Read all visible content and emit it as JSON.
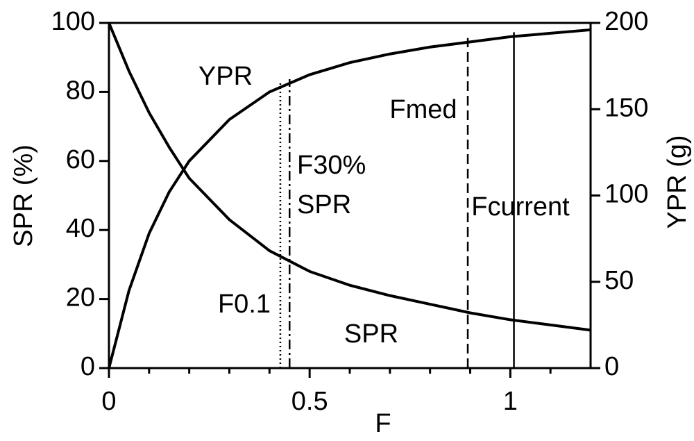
{
  "chart_data": {
    "type": "line",
    "xlabel": "F",
    "ylabel": "SPR (%)",
    "y2label": "YPR (g)",
    "xlim": [
      0,
      1.2
    ],
    "xticks": [
      0,
      0.5,
      1
    ],
    "xminorticks": [
      0.1,
      0.2,
      0.3,
      0.4,
      0.6,
      0.7,
      0.8,
      0.9,
      1.1
    ],
    "ylim": [
      0,
      100
    ],
    "yticks": [
      0,
      20,
      40,
      60,
      80,
      100
    ],
    "y2lim": [
      0,
      200
    ],
    "y2ticks": [
      0,
      50,
      100,
      150,
      200
    ],
    "x": [
      0,
      0.05,
      0.1,
      0.15,
      0.2,
      0.3,
      0.4,
      0.5,
      0.6,
      0.7,
      0.8,
      0.9,
      1.0,
      1.1,
      1.2
    ],
    "series": [
      {
        "name": "SPR",
        "color": "#000000",
        "axis": "y",
        "values": [
          100,
          86,
          74,
          64,
          55,
          43,
          34,
          28,
          24,
          21,
          18.5,
          16,
          14,
          12.5,
          11
        ]
      },
      {
        "name": "YPR",
        "color": "#000000",
        "axis": "y2",
        "values": [
          0,
          45,
          78,
          102,
          120,
          144,
          160,
          170,
          177,
          182,
          186,
          189,
          192,
          194,
          196
        ]
      }
    ],
    "reference_lines": [
      {
        "label": [
          "F0.1"
        ],
        "x": 0.427,
        "style": "dotted"
      },
      {
        "label": [
          "F30%",
          "SPR"
        ],
        "x": 0.45,
        "style": "dashdot"
      },
      {
        "label": [
          "Fmed"
        ],
        "x": 0.894,
        "style": "dashed"
      },
      {
        "label": [
          "Fcurrent"
        ],
        "x": 1.009,
        "style": "solid"
      }
    ]
  }
}
